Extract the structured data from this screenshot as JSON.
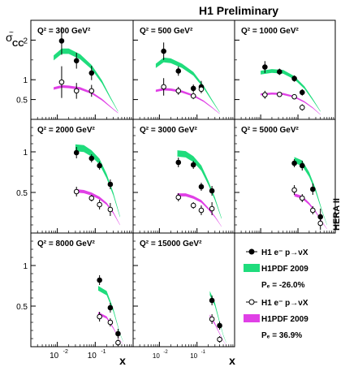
{
  "header": {
    "title": "H1 Preliminary",
    "side_label": "HERA II"
  },
  "axes": {
    "ylabel_main": "σ",
    "ylabel_tilde": "~",
    "ylabel_sub": "CC",
    "xlabel": "x",
    "x_scale": "log",
    "x_range": [
      0.002,
      1.0
    ],
    "y_ticks": [
      {
        "value": 0.5,
        "label": "0.5"
      },
      {
        "value": 1,
        "label": "1"
      },
      {
        "value": 2,
        "label": "2"
      }
    ],
    "x_tick_groups": [
      {
        "label": "10",
        "exp": "-2"
      },
      {
        "label": "10",
        "exp": "-1"
      }
    ]
  },
  "legend": {
    "items": [
      {
        "kind": "point-filled",
        "label": "H1 e⁻ p→νX"
      },
      {
        "kind": "band",
        "color": "#1fdc7c",
        "label": "H1PDF 2009"
      },
      {
        "kind": "text",
        "label": "Pₑ = -26.0%"
      },
      {
        "kind": "point-open",
        "label": "H1 e⁻ p→νX"
      },
      {
        "kind": "band",
        "color": "#e040e6",
        "label": "H1PDF 2009"
      },
      {
        "kind": "text",
        "label": "Pₑ = 36.9%"
      }
    ]
  },
  "chart_data": {
    "type": "scatter",
    "colors": {
      "neg_pol_band": "#1fdc7c",
      "pos_pol_band": "#e040e6"
    },
    "series": [
      {
        "name": "H1 e⁻ p→νX  Pₑ = -26.0% (filled)"
      },
      {
        "name": "H1 e⁻ p→νX  Pₑ = 36.9% (open)"
      },
      {
        "name": "H1PDF 2009 (Pₑ = -26.0%)"
      },
      {
        "name": "H1PDF 2009 (Pₑ = 36.9%)"
      }
    ],
    "panels": [
      {
        "q2_label": "Q² = 300 GeV²",
        "ylim": [
          0,
          2.5
        ],
        "filled": [
          [
            0.013,
            1.98,
            0.35
          ],
          [
            0.032,
            1.48,
            0.2
          ],
          [
            0.08,
            1.17,
            0.18
          ]
        ],
        "open": [
          [
            0.013,
            0.94,
            0.4
          ],
          [
            0.032,
            0.72,
            0.2
          ],
          [
            0.08,
            0.72,
            0.15
          ]
        ],
        "band_neg": [
          [
            0.008,
            1.55
          ],
          [
            0.013,
            1.72
          ],
          [
            0.02,
            1.72
          ],
          [
            0.04,
            1.58
          ],
          [
            0.08,
            1.32
          ],
          [
            0.15,
            0.95
          ],
          [
            0.25,
            0.55
          ],
          [
            0.4,
            0.2
          ]
        ],
        "band_pos": [
          [
            0.008,
            0.78
          ],
          [
            0.013,
            0.83
          ],
          [
            0.02,
            0.82
          ],
          [
            0.04,
            0.78
          ],
          [
            0.08,
            0.67
          ],
          [
            0.15,
            0.5
          ],
          [
            0.25,
            0.32
          ],
          [
            0.4,
            0.16
          ]
        ]
      },
      {
        "q2_label": "Q² = 500 GeV²",
        "ylim": [
          0,
          2.5
        ],
        "filled": [
          [
            0.013,
            1.72,
            0.22
          ],
          [
            0.032,
            1.22,
            0.12
          ],
          [
            0.08,
            0.78,
            0.1
          ],
          [
            0.13,
            0.82,
            0.15
          ]
        ],
        "open": [
          [
            0.013,
            0.82,
            0.22
          ],
          [
            0.032,
            0.72,
            0.1
          ],
          [
            0.08,
            0.59,
            0.08
          ],
          [
            0.13,
            0.76,
            0.1
          ]
        ],
        "band_neg": [
          [
            0.008,
            1.35
          ],
          [
            0.013,
            1.5
          ],
          [
            0.02,
            1.48
          ],
          [
            0.04,
            1.35
          ],
          [
            0.08,
            1.15
          ],
          [
            0.15,
            0.82
          ],
          [
            0.25,
            0.48
          ],
          [
            0.4,
            0.18
          ]
        ],
        "band_pos": [
          [
            0.008,
            0.72
          ],
          [
            0.013,
            0.76
          ],
          [
            0.02,
            0.75
          ],
          [
            0.04,
            0.7
          ],
          [
            0.08,
            0.6
          ],
          [
            0.15,
            0.46
          ],
          [
            0.25,
            0.3
          ],
          [
            0.4,
            0.14
          ]
        ]
      },
      {
        "q2_label": "Q² = 1000 GeV²",
        "ylim": [
          0,
          2.5
        ],
        "filled": [
          [
            0.013,
            1.32,
            0.15
          ],
          [
            0.032,
            1.2,
            0.08
          ],
          [
            0.08,
            1.03,
            0.08
          ],
          [
            0.13,
            0.68,
            0.08
          ]
        ],
        "open": [
          [
            0.013,
            0.62,
            0.1
          ],
          [
            0.032,
            0.63,
            0.05
          ],
          [
            0.08,
            0.57,
            0.05
          ],
          [
            0.13,
            0.3,
            0.08
          ]
        ],
        "band_neg": [
          [
            0.01,
            1.18
          ],
          [
            0.02,
            1.22
          ],
          [
            0.04,
            1.2
          ],
          [
            0.08,
            1.05
          ],
          [
            0.15,
            0.8
          ],
          [
            0.25,
            0.5
          ],
          [
            0.4,
            0.2
          ]
        ],
        "band_pos": [
          [
            0.01,
            0.63
          ],
          [
            0.02,
            0.65
          ],
          [
            0.04,
            0.64
          ],
          [
            0.08,
            0.57
          ],
          [
            0.15,
            0.44
          ],
          [
            0.25,
            0.29
          ],
          [
            0.4,
            0.12
          ]
        ]
      },
      {
        "q2_label": "Q² = 2000 GeV²",
        "ylim": [
          0,
          1.4
        ],
        "filled": [
          [
            0.032,
            0.99,
            0.07
          ],
          [
            0.08,
            0.92,
            0.05
          ],
          [
            0.13,
            0.83,
            0.05
          ],
          [
            0.25,
            0.6,
            0.06
          ]
        ],
        "open": [
          [
            0.032,
            0.51,
            0.06
          ],
          [
            0.08,
            0.43,
            0.04
          ],
          [
            0.13,
            0.35,
            0.06
          ],
          [
            0.25,
            0.29,
            0.08
          ]
        ],
        "band_neg": [
          [
            0.03,
            1.05
          ],
          [
            0.05,
            1.04
          ],
          [
            0.08,
            0.98
          ],
          [
            0.13,
            0.88
          ],
          [
            0.2,
            0.7
          ],
          [
            0.3,
            0.48
          ],
          [
            0.45,
            0.2
          ]
        ],
        "band_pos": [
          [
            0.03,
            0.52
          ],
          [
            0.05,
            0.51
          ],
          [
            0.08,
            0.48
          ],
          [
            0.13,
            0.43
          ],
          [
            0.2,
            0.36
          ],
          [
            0.3,
            0.25
          ],
          [
            0.45,
            0.1
          ]
        ]
      },
      {
        "q2_label": "Q² = 3000 GeV²",
        "ylim": [
          0,
          1.4
        ],
        "filled": [
          [
            0.032,
            0.87,
            0.06
          ],
          [
            0.08,
            0.84,
            0.05
          ],
          [
            0.13,
            0.57,
            0.05
          ],
          [
            0.25,
            0.52,
            0.06
          ]
        ],
        "open": [
          [
            0.032,
            0.44,
            0.05
          ],
          [
            0.08,
            0.34,
            0.04
          ],
          [
            0.13,
            0.28,
            0.06
          ],
          [
            0.25,
            0.3,
            0.08
          ]
        ],
        "band_neg": [
          [
            0.03,
            0.98
          ],
          [
            0.05,
            0.97
          ],
          [
            0.08,
            0.91
          ],
          [
            0.13,
            0.8
          ],
          [
            0.2,
            0.62
          ],
          [
            0.3,
            0.42
          ],
          [
            0.45,
            0.18
          ]
        ],
        "band_pos": [
          [
            0.03,
            0.47
          ],
          [
            0.05,
            0.47
          ],
          [
            0.08,
            0.44
          ],
          [
            0.13,
            0.39
          ],
          [
            0.2,
            0.3
          ],
          [
            0.3,
            0.2
          ],
          [
            0.45,
            0.08
          ]
        ]
      },
      {
        "q2_label": "Q² = 5000 GeV²",
        "ylim": [
          0,
          1.4
        ],
        "filled": [
          [
            0.08,
            0.86,
            0.05
          ],
          [
            0.13,
            0.83,
            0.06
          ],
          [
            0.25,
            0.54,
            0.07
          ],
          [
            0.4,
            0.2,
            0.1
          ]
        ],
        "open": [
          [
            0.08,
            0.53,
            0.06
          ],
          [
            0.13,
            0.43,
            0.05
          ],
          [
            0.25,
            0.28,
            0.05
          ],
          [
            0.4,
            0.12,
            0.08
          ]
        ],
        "band_neg": [
          [
            0.08,
            0.9
          ],
          [
            0.13,
            0.86
          ],
          [
            0.2,
            0.72
          ],
          [
            0.3,
            0.52
          ],
          [
            0.45,
            0.26
          ],
          [
            0.6,
            0.1
          ]
        ],
        "band_pos": [
          [
            0.08,
            0.47
          ],
          [
            0.13,
            0.44
          ],
          [
            0.2,
            0.36
          ],
          [
            0.3,
            0.26
          ],
          [
            0.45,
            0.13
          ],
          [
            0.6,
            0.05
          ]
        ]
      },
      {
        "q2_label": "Q² = 8000 GeV²",
        "ylim": [
          0,
          1.4
        ],
        "filled": [
          [
            0.13,
            0.82,
            0.06
          ],
          [
            0.25,
            0.48,
            0.06
          ],
          [
            0.4,
            0.16,
            0.06
          ]
        ],
        "open": [
          [
            0.13,
            0.37,
            0.06
          ],
          [
            0.25,
            0.3,
            0.05
          ],
          [
            0.4,
            0.05,
            0.04
          ]
        ],
        "band_neg": [
          [
            0.12,
            0.72
          ],
          [
            0.2,
            0.66
          ],
          [
            0.3,
            0.45
          ],
          [
            0.45,
            0.16
          ],
          [
            0.55,
            0.06
          ]
        ],
        "band_pos": [
          [
            0.12,
            0.41
          ],
          [
            0.2,
            0.36
          ],
          [
            0.3,
            0.23
          ],
          [
            0.45,
            0.08
          ],
          [
            0.55,
            0.03
          ]
        ]
      },
      {
        "q2_label": "Q² = 15000 GeV²",
        "ylim": [
          0,
          1.4
        ],
        "filled": [
          [
            0.25,
            0.57,
            0.06
          ],
          [
            0.4,
            0.26,
            0.05
          ]
        ],
        "open": [
          [
            0.25,
            0.34,
            0.06
          ],
          [
            0.4,
            0.09,
            0.04
          ]
        ],
        "band_neg": [
          [
            0.22,
            0.66
          ],
          [
            0.3,
            0.52
          ],
          [
            0.4,
            0.3
          ],
          [
            0.5,
            0.14
          ],
          [
            0.6,
            0.05
          ]
        ],
        "band_pos": [
          [
            0.22,
            0.38
          ],
          [
            0.3,
            0.28
          ],
          [
            0.4,
            0.16
          ],
          [
            0.5,
            0.07
          ],
          [
            0.6,
            0.02
          ]
        ]
      }
    ]
  }
}
